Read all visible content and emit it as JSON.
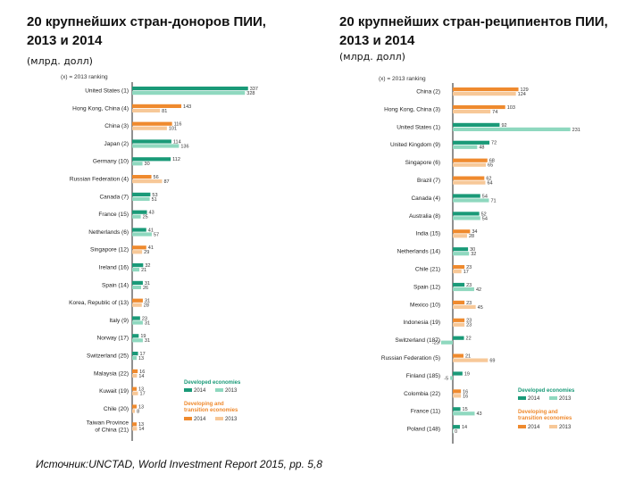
{
  "left": {
    "title_line1": "20 крупнейших стран-доноров ПИИ,",
    "title_line2": "2013 и 2014",
    "unit": "(млрд. долл)"
  },
  "right": {
    "title_line1": "20 крупнейших стран-реципиентов ПИИ,",
    "title_line2": "2013 и 2014",
    "unit": "(млрд. долл)"
  },
  "source": "Источник:UNCTAD, World Investment Report 2015, pp. 5,8",
  "colors": {
    "developed_2014": "#1a9a78",
    "developed_2013": "#8fd8bf",
    "developing_2014": "#ef8a2e",
    "developing_2013": "#f7c898",
    "axis": "#222222"
  },
  "chart_data": [
    {
      "type": "bar",
      "orientation": "horizontal",
      "title": "20 крупнейших стран-доноров ПИИ, 2013 и 2014",
      "ranking_note": "(x) = 2013 ranking",
      "categories": [
        "United States (1)",
        "Hong Kong, China (4)",
        "China (3)",
        "Japan (2)",
        "Germany (10)",
        "Russian Federation (4)",
        "Canada (7)",
        "France (15)",
        "Netherlands (6)",
        "Singapore (12)",
        "Ireland (16)",
        "Spain (14)",
        "Korea, Republic of (13)",
        "Italy (9)",
        "Norway (17)",
        "Switzerland (25)",
        "Malaysia (22)",
        "Kuwait (19)",
        "Chile (20)",
        "Taiwan Province of China (21)"
      ],
      "group": [
        "developed",
        "developing",
        "developing",
        "developed",
        "developed",
        "developing",
        "developed",
        "developed",
        "developed",
        "developing",
        "developed",
        "developed",
        "developing",
        "developed",
        "developed",
        "developed",
        "developing",
        "developing",
        "developing",
        "developing"
      ],
      "series": [
        {
          "name": "2014",
          "values": [
            337,
            143,
            116,
            114,
            112,
            56,
            53,
            43,
            41,
            41,
            32,
            31,
            31,
            23,
            19,
            17,
            16,
            13,
            13,
            13
          ]
        },
        {
          "name": "2013",
          "values": [
            328,
            81,
            101,
            136,
            30,
            87,
            51,
            25,
            57,
            29,
            21,
            26,
            28,
            31,
            31,
            13,
            14,
            17,
            8,
            14
          ]
        }
      ],
      "legend": {
        "group1_title": "Developed economies",
        "group2_title_line1": "Developing and",
        "group2_title_line2": "transition economies",
        "label_2014": "2014",
        "label_2013": "2013"
      }
    },
    {
      "type": "bar",
      "orientation": "horizontal",
      "title": "20 крупнейших стран-реципиентов ПИИ, 2013 и 2014",
      "ranking_note": "(x) = 2013 ranking",
      "categories": [
        "China (2)",
        "Hong Kong, China (3)",
        "United States (1)",
        "United Kingdom (9)",
        "Singapore (6)",
        "Brazil (7)",
        "Canada (4)",
        "Australia (8)",
        "India (15)",
        "Netherlands (14)",
        "Chile (21)",
        "Spain (12)",
        "Mexico (10)",
        "Indonesia (19)",
        "Switzerland (187)",
        "Russian Federation (5)",
        "Finland (185)",
        "Colombia (22)",
        "France (11)",
        "Poland (148)"
      ],
      "group": [
        "developing",
        "developing",
        "developed",
        "developed",
        "developing",
        "developing",
        "developed",
        "developed",
        "developing",
        "developed",
        "developing",
        "developed",
        "developing",
        "developing",
        "developed",
        "developing",
        "developed",
        "developing",
        "developed",
        "developed"
      ],
      "series": [
        {
          "name": "2014",
          "values": [
            129,
            103,
            92,
            72,
            68,
            62,
            54,
            52,
            34,
            30,
            23,
            23,
            23,
            23,
            22,
            21,
            19,
            16,
            15,
            14
          ]
        },
        {
          "name": "2013",
          "values": [
            124,
            74,
            231,
            48,
            65,
            64,
            71,
            54,
            28,
            32,
            17,
            42,
            45,
            23,
            -23,
            69,
            -5,
            16,
            43,
            0
          ]
        }
      ],
      "legend": {
        "group1_title": "Developed economies",
        "group2_title_line1": "Developing and",
        "group2_title_line2": "transition economies",
        "label_2014": "2014",
        "label_2013": "2013"
      }
    }
  ]
}
